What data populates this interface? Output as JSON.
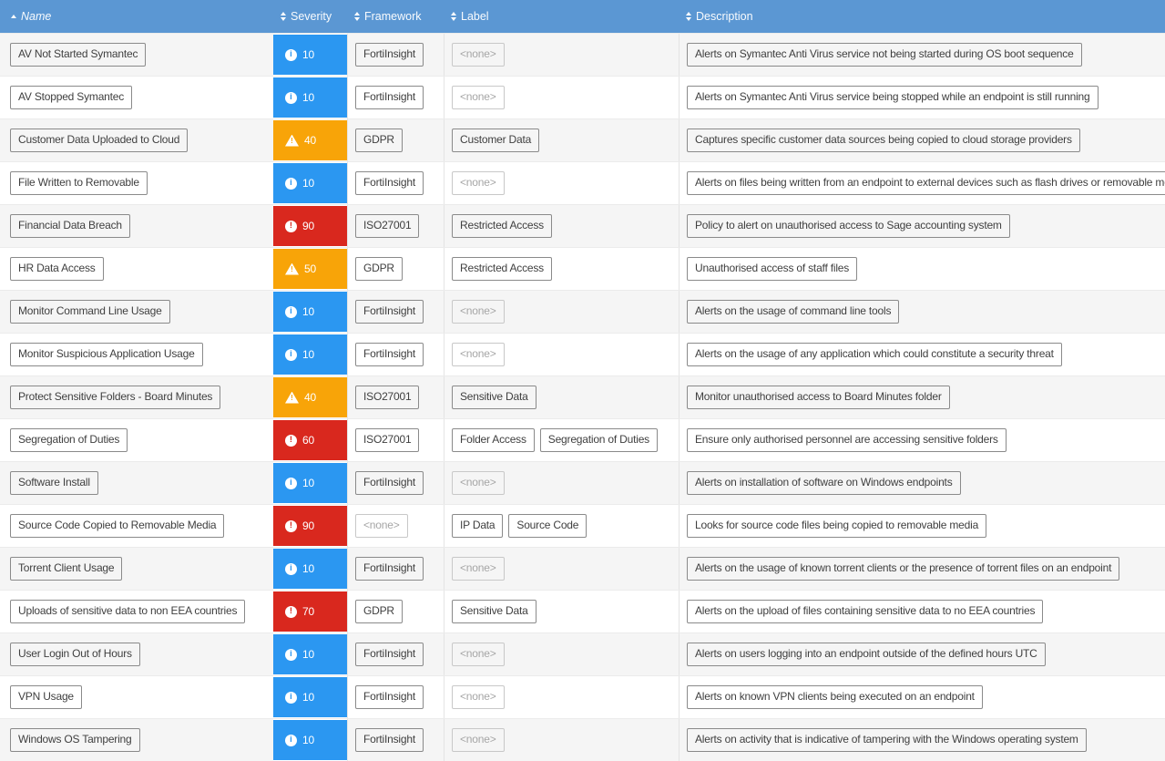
{
  "colors": {
    "header_bg": "#5b97d3",
    "severity_info": "#2b97f1",
    "severity_warning": "#f8a408",
    "severity_danger": "#d9281e",
    "row_odd": "#f5f5f5",
    "row_even": "#ffffff"
  },
  "none_placeholder": "<none>",
  "header": {
    "columns": [
      {
        "label": "Name",
        "sort": "asc",
        "italic": true
      },
      {
        "label": "Severity",
        "sort": "both"
      },
      {
        "label": "Framework",
        "sort": "both"
      },
      {
        "label": "Label",
        "sort": "both"
      },
      {
        "label": "Description",
        "sort": "both"
      }
    ]
  },
  "rows": [
    {
      "name": "AV Not Started Symantec",
      "severity": {
        "value": 10,
        "level": "info"
      },
      "framework": "FortiInsight",
      "labels": [],
      "description": "Alerts on Symantec Anti Virus service not being started during OS boot sequence"
    },
    {
      "name": "AV Stopped Symantec",
      "severity": {
        "value": 10,
        "level": "info"
      },
      "framework": "FortiInsight",
      "labels": [],
      "description": "Alerts on Symantec Anti Virus service being stopped while an endpoint is still running"
    },
    {
      "name": "Customer Data Uploaded to Cloud",
      "severity": {
        "value": 40,
        "level": "warning"
      },
      "framework": "GDPR",
      "labels": [
        "Customer Data"
      ],
      "description": "Captures specific customer data sources being copied to cloud storage providers"
    },
    {
      "name": "File Written to Removable",
      "severity": {
        "value": 10,
        "level": "info"
      },
      "framework": "FortiInsight",
      "labels": [],
      "description": "Alerts on files being written from an endpoint to external devices such as flash drives or removable media"
    },
    {
      "name": "Financial Data Breach",
      "severity": {
        "value": 90,
        "level": "danger"
      },
      "framework": "ISO27001",
      "labels": [
        "Restricted Access"
      ],
      "description": "Policy to alert on unauthorised access to Sage accounting system"
    },
    {
      "name": "HR Data Access",
      "severity": {
        "value": 50,
        "level": "warning"
      },
      "framework": "GDPR",
      "labels": [
        "Restricted Access"
      ],
      "description": "Unauthorised access of staff files"
    },
    {
      "name": "Monitor Command Line Usage",
      "severity": {
        "value": 10,
        "level": "info"
      },
      "framework": "FortiInsight",
      "labels": [],
      "description": "Alerts on the usage of command line tools"
    },
    {
      "name": "Monitor Suspicious Application Usage",
      "severity": {
        "value": 10,
        "level": "info"
      },
      "framework": "FortiInsight",
      "labels": [],
      "description": "Alerts on the usage of any application which could constitute a security threat"
    },
    {
      "name": "Protect Sensitive Folders - Board Minutes",
      "severity": {
        "value": 40,
        "level": "warning"
      },
      "framework": "ISO27001",
      "labels": [
        "Sensitive Data"
      ],
      "description": "Monitor unauthorised access to Board Minutes folder"
    },
    {
      "name": "Segregation of Duties",
      "severity": {
        "value": 60,
        "level": "danger"
      },
      "framework": "ISO27001",
      "labels": [
        "Folder Access",
        "Segregation of Duties"
      ],
      "description": "Ensure only authorised personnel are accessing sensitive folders"
    },
    {
      "name": "Software Install",
      "severity": {
        "value": 10,
        "level": "info"
      },
      "framework": "FortiInsight",
      "labels": [],
      "description": "Alerts on installation of software on Windows endpoints"
    },
    {
      "name": "Source Code Copied to Removable Media",
      "severity": {
        "value": 90,
        "level": "danger"
      },
      "framework": null,
      "labels": [
        "IP Data",
        "Source Code"
      ],
      "description": "Looks for source code files being copied to removable media"
    },
    {
      "name": "Torrent Client Usage",
      "severity": {
        "value": 10,
        "level": "info"
      },
      "framework": "FortiInsight",
      "labels": [],
      "description": "Alerts on the usage of known torrent clients or the presence of torrent files on an endpoint"
    },
    {
      "name": "Uploads of sensitive data to non EEA countries",
      "severity": {
        "value": 70,
        "level": "danger"
      },
      "framework": "GDPR",
      "labels": [
        "Sensitive Data"
      ],
      "description": "Alerts on the upload of files containing sensitive data to no EEA countries"
    },
    {
      "name": "User Login Out of Hours",
      "severity": {
        "value": 10,
        "level": "info"
      },
      "framework": "FortiInsight",
      "labels": [],
      "description": "Alerts on users logging into an endpoint outside of the defined hours UTC"
    },
    {
      "name": "VPN Usage",
      "severity": {
        "value": 10,
        "level": "info"
      },
      "framework": "FortiInsight",
      "labels": [],
      "description": "Alerts on known VPN clients being executed on an endpoint"
    },
    {
      "name": "Windows OS Tampering",
      "severity": {
        "value": 10,
        "level": "info"
      },
      "framework": "FortiInsight",
      "labels": [],
      "description": "Alerts on activity that is indicative of tampering with the Windows operating system"
    }
  ]
}
